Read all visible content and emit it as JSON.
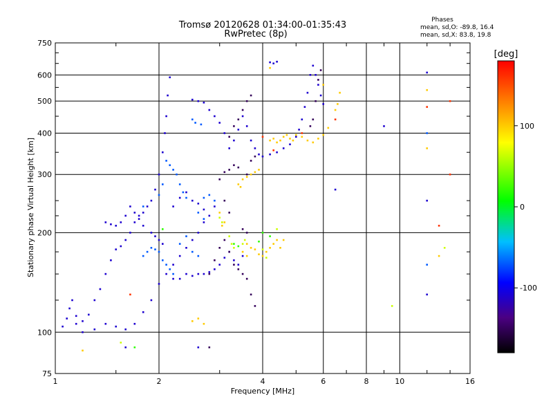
{
  "chart_data": {
    "type": "scatter",
    "title": "Tromsø 20120628 01:34:00-01:35:43",
    "subtitle": "RwPretec (8p)",
    "xlabel": "Frequency [MHz]",
    "ylabel": "Stationary phase Virtual Height [km]",
    "x_scale": "log",
    "y_scale": "log",
    "xlim": [
      1,
      16
    ],
    "ylim": [
      75,
      750
    ],
    "x_ticks": [
      1,
      2,
      4,
      6,
      8,
      10,
      16
    ],
    "x_tick_labels": [
      "1",
      "2",
      "4",
      "6",
      "8",
      "10",
      "16"
    ],
    "y_ticks": [
      75,
      100,
      200,
      300,
      400,
      500,
      600,
      750
    ],
    "y_tick_labels": [
      "75",
      "100",
      "200",
      "300",
      "400",
      "500",
      "600",
      "750"
    ],
    "grid": true,
    "phase_info": {
      "title": "Phases",
      "line1": "mean, sd,O: -89.8, 16.4",
      "line2": "mean, sd,X:  83.8, 19.8"
    },
    "colorbar": {
      "label": "[deg]",
      "range": [
        -180,
        180
      ],
      "ticks": [
        100,
        0,
        -100
      ],
      "tick_labels": [
        "100",
        "0",
        "-100"
      ]
    },
    "series": [
      {
        "phase_deg": -110,
        "points": [
          [
            1.05,
            104
          ],
          [
            1.08,
            110
          ],
          [
            1.1,
            118
          ],
          [
            1.12,
            125
          ],
          [
            1.15,
            112
          ],
          [
            1.2,
            108
          ],
          [
            1.25,
            113
          ],
          [
            1.3,
            125
          ],
          [
            1.35,
            135
          ],
          [
            1.4,
            150
          ],
          [
            1.45,
            165
          ],
          [
            1.5,
            178
          ],
          [
            1.55,
            182
          ],
          [
            1.6,
            190
          ],
          [
            1.65,
            200
          ],
          [
            1.7,
            215
          ],
          [
            1.75,
            225
          ],
          [
            1.8,
            230
          ],
          [
            1.85,
            240
          ],
          [
            1.9,
            250
          ],
          [
            1.95,
            270
          ],
          [
            2.0,
            300
          ],
          [
            2.05,
            350
          ],
          [
            2.08,
            400
          ],
          [
            2.1,
            450
          ],
          [
            2.12,
            520
          ],
          [
            2.15,
            590
          ],
          [
            1.4,
            215
          ],
          [
            1.45,
            212
          ],
          [
            1.5,
            210
          ],
          [
            1.55,
            215
          ],
          [
            1.6,
            225
          ],
          [
            1.65,
            240
          ],
          [
            1.7,
            230
          ],
          [
            1.75,
            220
          ],
          [
            1.8,
            210
          ],
          [
            1.9,
            200
          ],
          [
            1.95,
            195
          ],
          [
            2.0,
            190
          ],
          [
            2.05,
            185
          ],
          [
            1.4,
            106
          ],
          [
            1.5,
            104
          ],
          [
            1.6,
            102
          ],
          [
            1.7,
            106
          ],
          [
            1.8,
            115
          ],
          [
            1.9,
            125
          ],
          [
            2.0,
            140
          ],
          [
            2.1,
            150
          ],
          [
            2.2,
            160
          ],
          [
            2.3,
            170
          ],
          [
            2.4,
            180
          ],
          [
            2.5,
            190
          ],
          [
            2.6,
            200
          ],
          [
            2.7,
            215
          ],
          [
            2.8,
            225
          ],
          [
            2.9,
            240
          ],
          [
            2.2,
            240
          ],
          [
            2.3,
            255
          ],
          [
            2.4,
            265
          ],
          [
            2.5,
            250
          ],
          [
            2.6,
            245
          ],
          [
            2.7,
            235
          ],
          [
            2.2,
            145
          ],
          [
            2.3,
            145
          ],
          [
            2.4,
            150
          ],
          [
            2.5,
            148
          ],
          [
            2.6,
            150
          ],
          [
            2.7,
            150
          ],
          [
            2.8,
            152
          ],
          [
            2.9,
            155
          ],
          [
            2.5,
            505
          ],
          [
            2.6,
            500
          ],
          [
            2.7,
            495
          ],
          [
            2.8,
            470
          ],
          [
            2.9,
            450
          ],
          [
            3.0,
            430
          ],
          [
            3.1,
            400
          ],
          [
            3.2,
            360
          ],
          [
            3.3,
            380
          ],
          [
            3.4,
            410
          ],
          [
            3.5,
            450
          ],
          [
            3.6,
            420
          ],
          [
            3.7,
            380
          ],
          [
            3.8,
            360
          ],
          [
            3.9,
            345
          ],
          [
            4.0,
            340
          ],
          [
            4.2,
            345
          ],
          [
            4.4,
            350
          ],
          [
            4.6,
            360
          ],
          [
            4.8,
            370
          ],
          [
            5.0,
            390
          ],
          [
            5.1,
            410
          ],
          [
            5.2,
            440
          ],
          [
            5.3,
            480
          ],
          [
            5.4,
            530
          ],
          [
            5.5,
            600
          ],
          [
            5.6,
            640
          ],
          [
            5.7,
            600
          ],
          [
            5.8,
            560
          ],
          [
            5.9,
            520
          ],
          [
            6.0,
            490
          ],
          [
            3.0,
            160
          ],
          [
            3.1,
            168
          ],
          [
            3.2,
            175
          ],
          [
            3.3,
            165
          ],
          [
            3.4,
            160
          ],
          [
            3.5,
            170
          ],
          [
            4.2,
            655
          ],
          [
            4.3,
            650
          ],
          [
            4.4,
            658
          ],
          [
            12.0,
            610
          ],
          [
            12.0,
            130
          ],
          [
            12.0,
            250
          ],
          [
            9.0,
            420
          ],
          [
            6.5,
            270
          ],
          [
            2.6,
            90
          ],
          [
            1.6,
            90
          ],
          [
            1.2,
            100
          ],
          [
            1.3,
            102
          ],
          [
            1.15,
            106
          ]
        ]
      },
      {
        "phase_deg": -70,
        "points": [
          [
            1.8,
            170
          ],
          [
            1.85,
            175
          ],
          [
            1.9,
            180
          ],
          [
            1.95,
            178
          ],
          [
            2.0,
            175
          ],
          [
            2.05,
            165
          ],
          [
            2.1,
            160
          ],
          [
            2.15,
            155
          ],
          [
            2.2,
            150
          ],
          [
            2.3,
            185
          ],
          [
            2.4,
            195
          ],
          [
            2.5,
            175
          ],
          [
            2.6,
            170
          ],
          [
            2.7,
            255
          ],
          [
            2.8,
            260
          ],
          [
            2.9,
            250
          ],
          [
            2.1,
            330
          ],
          [
            2.15,
            320
          ],
          [
            2.2,
            310
          ],
          [
            2.25,
            300
          ],
          [
            2.3,
            280
          ],
          [
            2.35,
            265
          ],
          [
            2.4,
            255
          ],
          [
            2.6,
            230
          ],
          [
            2.7,
            220
          ],
          [
            1.8,
            240
          ],
          [
            2.0,
            260
          ],
          [
            2.05,
            280
          ],
          [
            12.0,
            400
          ],
          [
            12.0,
            160
          ],
          [
            2.5,
            440
          ],
          [
            2.55,
            430
          ],
          [
            2.65,
            425
          ]
        ]
      },
      {
        "phase_deg": -150,
        "points": [
          [
            2.8,
            150
          ],
          [
            2.9,
            165
          ],
          [
            3.0,
            180
          ],
          [
            3.1,
            190
          ],
          [
            3.2,
            175
          ],
          [
            3.3,
            160
          ],
          [
            3.4,
            155
          ],
          [
            3.5,
            150
          ],
          [
            3.6,
            145
          ],
          [
            3.7,
            130
          ],
          [
            3.0,
            290
          ],
          [
            3.1,
            305
          ],
          [
            3.2,
            310
          ],
          [
            3.3,
            320
          ],
          [
            3.4,
            315
          ],
          [
            3.6,
            300
          ],
          [
            3.7,
            330
          ],
          [
            3.8,
            340
          ],
          [
            3.5,
            205
          ],
          [
            3.6,
            200
          ],
          [
            3.2,
            390
          ],
          [
            3.3,
            420
          ],
          [
            3.4,
            440
          ],
          [
            3.5,
            470
          ],
          [
            3.6,
            500
          ],
          [
            3.7,
            520
          ],
          [
            5.5,
            420
          ],
          [
            5.6,
            440
          ],
          [
            5.7,
            500
          ],
          [
            5.8,
            580
          ],
          [
            5.9,
            620
          ],
          [
            3.1,
            250
          ],
          [
            3.2,
            230
          ],
          [
            2.8,
            90
          ],
          [
            3.8,
            120
          ]
        ]
      },
      {
        "phase_deg": 100,
        "points": [
          [
            3.6,
            295
          ],
          [
            3.7,
            300
          ],
          [
            3.8,
            305
          ],
          [
            3.9,
            310
          ],
          [
            3.5,
            290
          ],
          [
            3.4,
            280
          ],
          [
            3.45,
            275
          ],
          [
            3.6,
            185
          ],
          [
            3.7,
            180
          ],
          [
            3.8,
            178
          ],
          [
            3.9,
            172
          ],
          [
            4.0,
            170
          ],
          [
            4.1,
            175
          ],
          [
            4.2,
            180
          ],
          [
            4.3,
            185
          ],
          [
            4.4,
            190
          ],
          [
            4.5,
            180
          ],
          [
            4.6,
            190
          ],
          [
            3.5,
            175
          ],
          [
            3.6,
            170
          ],
          [
            4.2,
            380
          ],
          [
            4.3,
            385
          ],
          [
            4.4,
            375
          ],
          [
            4.5,
            380
          ],
          [
            4.6,
            390
          ],
          [
            4.7,
            395
          ],
          [
            4.8,
            385
          ],
          [
            4.9,
            380
          ],
          [
            5.0,
            395
          ],
          [
            5.2,
            390
          ],
          [
            5.4,
            380
          ],
          [
            5.6,
            375
          ],
          [
            5.8,
            385
          ],
          [
            6.0,
            395
          ],
          [
            6.2,
            415
          ],
          [
            6.5,
            470
          ],
          [
            6.6,
            490
          ],
          [
            6.7,
            530
          ],
          [
            2.5,
            108
          ],
          [
            2.6,
            110
          ],
          [
            2.7,
            106
          ],
          [
            3.0,
            230
          ],
          [
            3.05,
            210
          ],
          [
            3.1,
            215
          ],
          [
            4.2,
            630
          ],
          [
            12.0,
            540
          ],
          [
            12.0,
            360
          ],
          [
            13.0,
            170
          ],
          [
            6.0,
            560
          ],
          [
            1.2,
            88
          ]
        ]
      },
      {
        "phase_deg": 65,
        "points": [
          [
            3.5,
            185
          ],
          [
            3.55,
            190
          ],
          [
            3.2,
            195
          ],
          [
            3.25,
            185
          ],
          [
            3.3,
            180
          ],
          [
            4.0,
            178
          ],
          [
            4.1,
            168
          ],
          [
            4.4,
            205
          ],
          [
            3.0,
            222
          ],
          [
            3.05,
            215
          ],
          [
            1.55,
            93
          ],
          [
            9.5,
            120
          ],
          [
            13.5,
            180
          ]
        ]
      },
      {
        "phase_deg": 20,
        "points": [
          [
            3.3,
            185
          ],
          [
            3.4,
            182
          ],
          [
            3.9,
            188
          ],
          [
            4.0,
            200
          ],
          [
            4.2,
            195
          ],
          [
            2.05,
            205
          ],
          [
            1.7,
            90
          ]
        ]
      },
      {
        "phase_deg": 160,
        "points": [
          [
            4.0,
            390
          ],
          [
            4.3,
            355
          ],
          [
            5.2,
            400
          ],
          [
            6.5,
            440
          ],
          [
            12.0,
            480
          ],
          [
            13.0,
            210
          ],
          [
            14.0,
            500
          ],
          [
            14.0,
            300
          ],
          [
            1.65,
            130
          ]
        ]
      }
    ]
  }
}
